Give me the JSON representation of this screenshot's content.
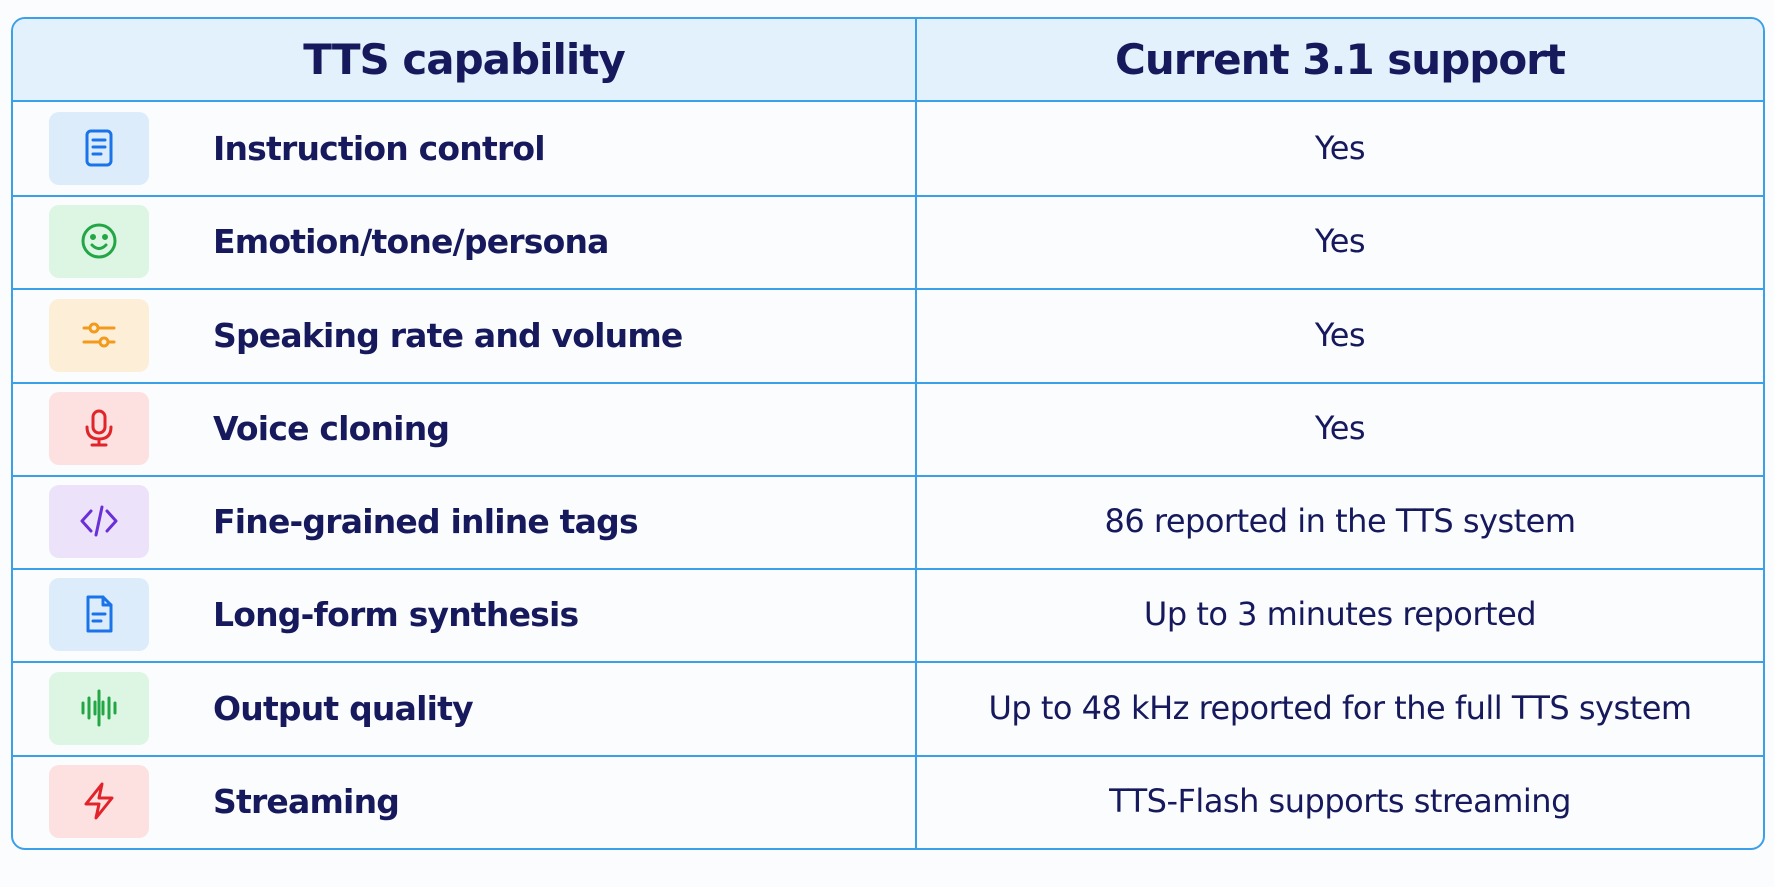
{
  "header": {
    "columns": [
      "TTS capability",
      "Current 3.1 support"
    ]
  },
  "table": {
    "rows": [
      [
        "Instruction control",
        "Yes"
      ],
      [
        "Emotion/tone/persona",
        "Yes"
      ],
      [
        "Speaking rate and volume",
        "Yes"
      ],
      [
        "Voice cloning",
        "Yes"
      ],
      [
        "Fine-grained inline tags",
        "86 reported in the TTS system"
      ],
      [
        "Long-form synthesis",
        "Up to 3 minutes reported"
      ],
      [
        "Output quality",
        "Up to 48 kHz reported for the full TTS system"
      ],
      [
        "Streaming",
        "TTS-Flash supports streaming"
      ]
    ]
  }
}
